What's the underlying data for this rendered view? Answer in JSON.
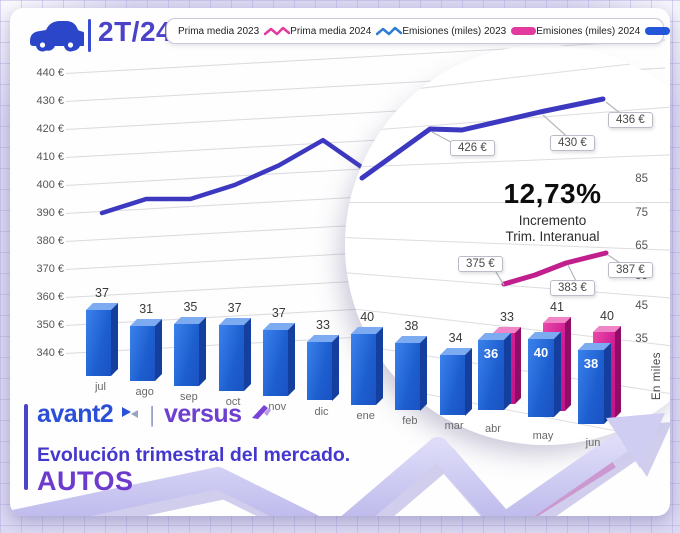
{
  "header": {
    "period": "2T/24"
  },
  "legend": {
    "items": [
      {
        "label": "Prima media 2023",
        "swatch": "line",
        "color": "#e23a9e"
      },
      {
        "label": "Prima media 2024",
        "swatch": "line",
        "color": "#2e7cd6"
      },
      {
        "label": "Emisiones (miles) 2023",
        "swatch": "bar",
        "color": "#e23a9e"
      },
      {
        "label": "Emisiones (miles) 2024",
        "swatch": "bar",
        "color": "#2356d8"
      }
    ]
  },
  "chart_data": {
    "type": "bar",
    "subtype": "3d-combo-bar-line-with-magnifier",
    "categories": [
      "jul",
      "ago",
      "sep",
      "oct",
      "nov",
      "dic",
      "ene",
      "feb",
      "mar",
      "abr",
      "may",
      "jun"
    ],
    "series": [
      {
        "name": "Emisiones (miles) 2024",
        "type": "bar",
        "color": "#1e63d6",
        "values": [
          37,
          31,
          35,
          37,
          37,
          33,
          40,
          38,
          34,
          36,
          40,
          38
        ]
      },
      {
        "name": "Emisiones (miles) 2023",
        "type": "bar",
        "color": "#d6219b",
        "values": [
          null,
          null,
          null,
          null,
          null,
          null,
          null,
          null,
          null,
          33,
          41,
          40
        ]
      },
      {
        "name": "Prima media 2024",
        "type": "line",
        "color": "#3c38c0",
        "values": [
          390,
          395,
          395,
          400,
          407,
          416,
          405,
          412,
          419,
          426,
          430,
          436
        ],
        "labeled_points": {
          "abr": "426 €",
          "may": "430 €",
          "jun": "436 €"
        }
      },
      {
        "name": "Prima media 2023",
        "type": "line",
        "color": "#c21f8e",
        "values": [
          null,
          null,
          null,
          null,
          null,
          null,
          null,
          null,
          null,
          375,
          383,
          387
        ],
        "labeled_points": {
          "abr": "375 €",
          "may": "383 €",
          "jun": "387 €"
        }
      }
    ],
    "y_left": {
      "ticks": [
        "440 €",
        "430 €",
        "420 €",
        "410 €",
        "400 €",
        "390 €",
        "380 €",
        "370 €",
        "360 €",
        "350 €",
        "340 €"
      ],
      "range": [
        340,
        440
      ]
    },
    "y_right": {
      "ticks": [
        "85",
        "75",
        "65",
        "55",
        "45",
        "35"
      ],
      "label": "En miles"
    },
    "grid": true,
    "legend_position": "top"
  },
  "magnifier": {
    "highlight_pct": "12,73%",
    "caption_line1": "Incremento",
    "caption_line2": "Trim. Interanual",
    "callouts_2024": [
      "426 €",
      "430 €",
      "436 €"
    ],
    "callouts_2023": [
      "375 €",
      "383 €",
      "387 €"
    ]
  },
  "branding": {
    "brand_primary": "avant2",
    "brand_divider": "|",
    "brand_secondary": "versus",
    "subtitle": "Evolución trimestral del mercado.",
    "title": "AUTOS"
  },
  "colors": {
    "accent_indigo": "#4a42c9",
    "bar_blue": "#1e63d6",
    "bar_pink": "#d6219b",
    "line_2024": "#3c38c0",
    "line_2023": "#c21f8e",
    "brand_blue": "#2b50d8",
    "brand_purple": "#6f3fd0"
  }
}
